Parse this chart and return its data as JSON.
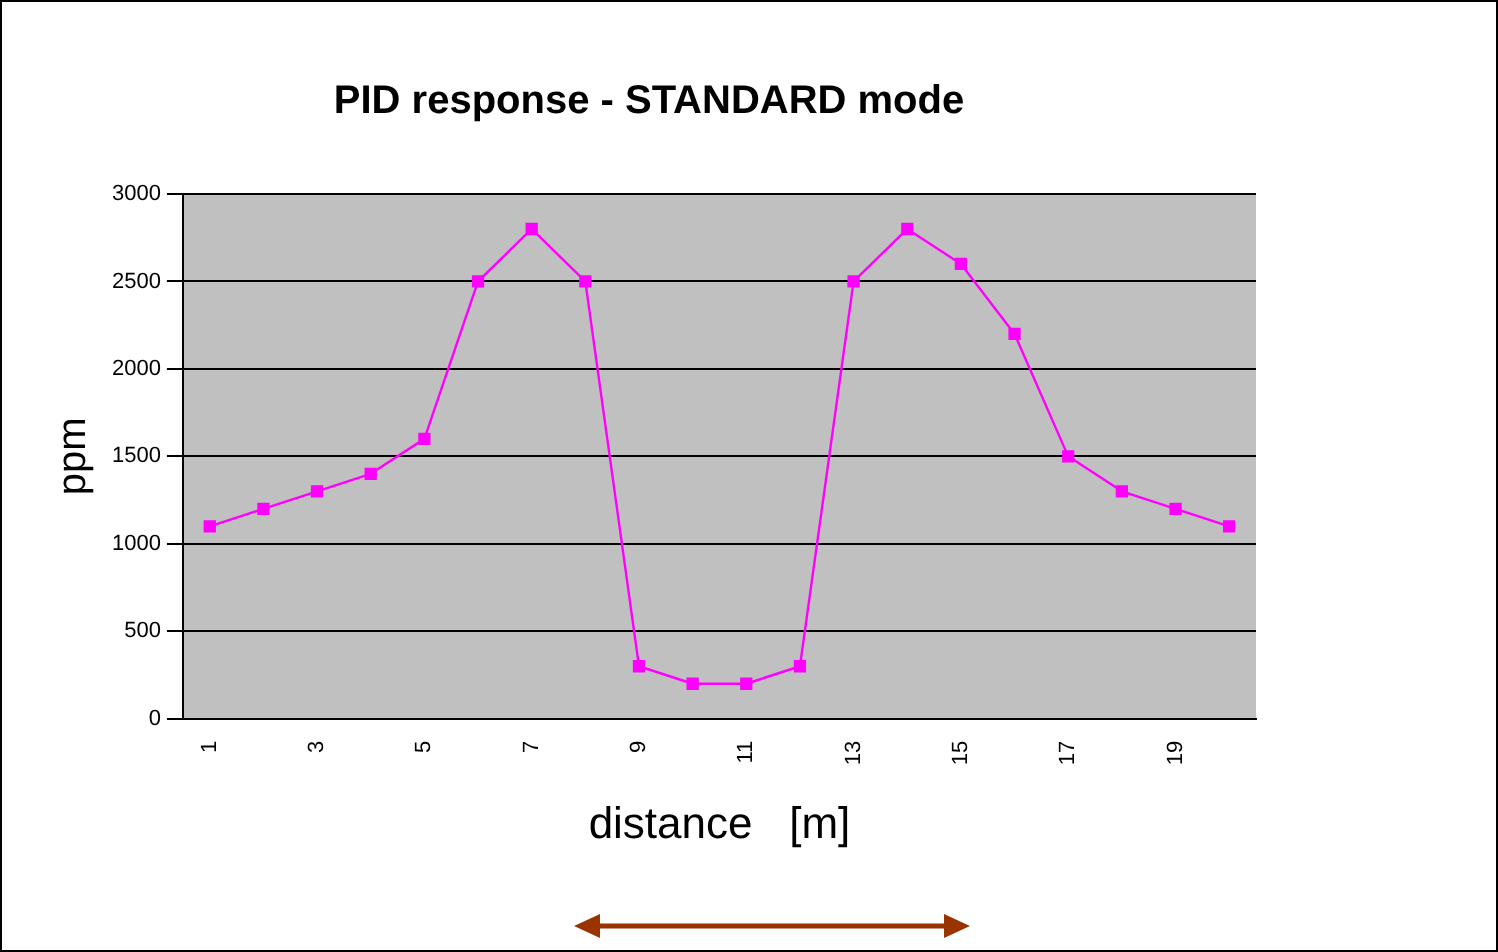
{
  "chart_data": {
    "type": "line",
    "title": "PID response - STANDARD mode",
    "xlabel": "distance   [m]",
    "ylabel": "ppm",
    "categories": [
      "1",
      null,
      "3",
      null,
      "5",
      null,
      "7",
      null,
      "9",
      null,
      "11",
      null,
      "13",
      null,
      "15",
      null,
      "17",
      null,
      "19",
      null
    ],
    "series": [
      {
        "color": "#ff00ff",
        "values": [
          1100,
          1200,
          1300,
          1400,
          1600,
          2500,
          2800,
          2500,
          300,
          200,
          200,
          300,
          2500,
          2800,
          2600,
          2200,
          1500,
          1300,
          1200,
          1100
        ]
      }
    ],
    "ylim": [
      0,
      3000
    ],
    "yticks": [
      0,
      500,
      1000,
      1500,
      2000,
      2500,
      3000
    ],
    "grid": "y",
    "legend": false,
    "marker": "square",
    "line_style": "solid"
  }
}
